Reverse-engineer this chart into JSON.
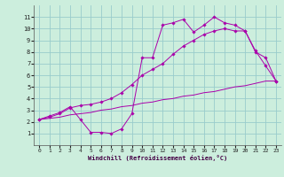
{
  "background_color": "#cceedd",
  "grid_color": "#99cccc",
  "line_color": "#aa00aa",
  "xlim": [
    -0.5,
    23.5
  ],
  "ylim": [
    0,
    12
  ],
  "xticks": [
    0,
    1,
    2,
    3,
    4,
    5,
    6,
    7,
    8,
    9,
    10,
    11,
    12,
    13,
    14,
    15,
    16,
    17,
    18,
    19,
    20,
    21,
    22,
    23
  ],
  "yticks": [
    1,
    2,
    3,
    4,
    5,
    6,
    7,
    8,
    9,
    10,
    11
  ],
  "xlabel": "Windchill (Refroidissement éolien,°C)",
  "curve1_x": [
    0,
    1,
    2,
    3,
    4,
    5,
    6,
    7,
    8,
    9,
    10,
    11,
    12,
    13,
    14,
    15,
    16,
    17,
    18,
    19,
    20,
    21,
    22,
    23
  ],
  "curve1_y": [
    2.2,
    2.5,
    2.8,
    3.3,
    2.2,
    1.1,
    1.1,
    1.0,
    1.4,
    2.7,
    7.5,
    7.5,
    10.3,
    10.5,
    10.8,
    9.7,
    10.3,
    11.0,
    10.5,
    10.3,
    9.8,
    8.0,
    7.5,
    5.5
  ],
  "curve2_x": [
    0,
    1,
    2,
    3,
    4,
    5,
    6,
    7,
    8,
    9,
    10,
    11,
    12,
    13,
    14,
    15,
    16,
    17,
    18,
    19,
    20,
    21,
    22,
    23
  ],
  "curve2_y": [
    2.2,
    2.4,
    2.7,
    3.2,
    3.4,
    3.5,
    3.7,
    4.0,
    4.5,
    5.2,
    6.0,
    6.5,
    7.0,
    7.8,
    8.5,
    9.0,
    9.5,
    9.8,
    10.0,
    9.8,
    9.8,
    8.1,
    6.8,
    5.5
  ],
  "curve3_x": [
    0,
    1,
    2,
    3,
    4,
    5,
    6,
    7,
    8,
    9,
    10,
    11,
    12,
    13,
    14,
    15,
    16,
    17,
    18,
    19,
    20,
    21,
    22,
    23
  ],
  "curve3_y": [
    2.2,
    2.3,
    2.4,
    2.6,
    2.7,
    2.8,
    3.0,
    3.1,
    3.3,
    3.4,
    3.6,
    3.7,
    3.9,
    4.0,
    4.2,
    4.3,
    4.5,
    4.6,
    4.8,
    5.0,
    5.1,
    5.3,
    5.5,
    5.5
  ]
}
